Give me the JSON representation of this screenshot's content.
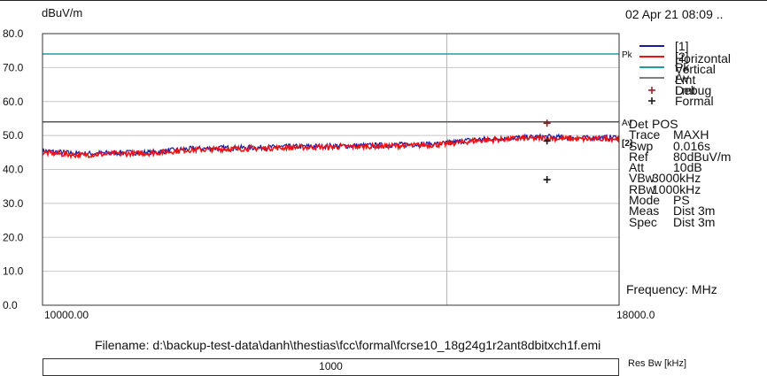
{
  "header": {
    "y_unit": "dBuV/m",
    "datetime": "02 Apr 21 08:09 .."
  },
  "chart_data": {
    "type": "line",
    "title": "",
    "ylabel": "dBuV/m",
    "xlabel": "Frequency: MHz",
    "x_range": [
      10000,
      18000
    ],
    "ylim": [
      0,
      80
    ],
    "x_tick_labels": [
      "10000.00",
      "18000.0"
    ],
    "y_ticks": [
      0,
      10,
      20,
      30,
      40,
      50,
      60,
      70,
      80
    ],
    "y_tick_labels": [
      "0.0",
      "10.0",
      "20.0",
      "30.0",
      "40.0",
      "50.0",
      "60.0",
      "70.0",
      "80.0"
    ],
    "vertical_marker_x": 15610,
    "grid": true,
    "series": [
      {
        "name": "[1] Horizontal",
        "color": "#1a1aa0",
        "x": [
          10000,
          10500,
          11000,
          11500,
          12000,
          12500,
          13000,
          13500,
          14000,
          14500,
          15000,
          15500,
          16000,
          16500,
          17000,
          17500,
          18000
        ],
        "values": [
          45.5,
          44.6,
          44.9,
          45.0,
          46.0,
          46.3,
          46.4,
          46.7,
          46.9,
          47.0,
          47.3,
          47.5,
          48.8,
          49.3,
          49.6,
          49.2,
          49.5
        ]
      },
      {
        "name": "[2] Vertical",
        "color": "#ee1111",
        "x": [
          10000,
          10500,
          11000,
          11500,
          12000,
          12500,
          13000,
          13500,
          14000,
          14500,
          15000,
          15500,
          16000,
          16500,
          17000,
          17500,
          18000
        ],
        "values": [
          44.9,
          44.2,
          44.6,
          44.8,
          45.7,
          46.0,
          46.2,
          46.5,
          46.6,
          46.8,
          47.0,
          47.3,
          48.4,
          49.0,
          49.2,
          48.9,
          49.1
        ]
      }
    ],
    "limits": [
      {
        "name": "Pk Lmt",
        "label": "Pk",
        "color": "#1f9e9e",
        "value": 74
      },
      {
        "name": "Av Lmt",
        "label": "Av",
        "color": "#555555",
        "value": 54
      }
    ],
    "markers": [
      {
        "name": "Debug",
        "symbol": "+",
        "color": "#8b1a1a",
        "points": [
          [
            17000,
            53.6
          ]
        ]
      },
      {
        "name": "Formal",
        "symbol": "+",
        "color": "#111111",
        "points": [
          [
            17000,
            48.4
          ],
          [
            17000,
            37.0
          ]
        ]
      }
    ],
    "trace_tag": "[2]"
  },
  "parameters": [
    {
      "key": "Det",
      "value": "POS"
    },
    {
      "key": "Trace",
      "value": "MAXH"
    },
    {
      "key": "Swp",
      "value": "0.016s"
    },
    {
      "key": "Ref",
      "value": "80dBuV/m"
    },
    {
      "key": "Att",
      "value": "10dB"
    },
    {
      "key": "VBw",
      "value": "3000kHz"
    },
    {
      "key": "RBw",
      "value": "1000kHz"
    },
    {
      "key": "Mode",
      "value": "PS"
    },
    {
      "key": "Meas",
      "value": "Dist 3m"
    },
    {
      "key": "Spec",
      "value": "Dist 3m"
    }
  ],
  "footer": {
    "filename": "Filename: d:\\backup-test-data\\danh\\thestias\\fcc\\formal\\fcrse10_18g24g1r2ant8dbitxch1f.emi",
    "rbw_value": "1000",
    "rbw_label": "Res Bw [kHz]"
  }
}
